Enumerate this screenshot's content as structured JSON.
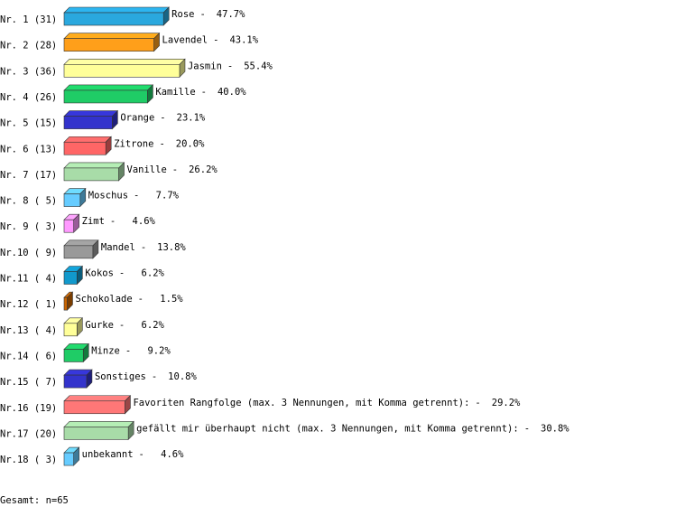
{
  "chart_data": {
    "type": "bar",
    "orientation": "horizontal",
    "row_labels": [
      "Nr. 1 (31)",
      "Nr. 2 (28)",
      "Nr. 3 (36)",
      "Nr. 4 (26)",
      "Nr. 5 (15)",
      "Nr. 6 (13)",
      "Nr. 7 (17)",
      "Nr. 8 ( 5)",
      "Nr. 9 ( 3)",
      "Nr.10 ( 9)",
      "Nr.11 ( 4)",
      "Nr.12 ( 1)",
      "Nr.13 ( 4)",
      "Nr.14 ( 6)",
      "Nr.15 ( 7)",
      "Nr.16 (19)",
      "Nr.17 (20)",
      "Nr.18 ( 3)"
    ],
    "categories": [
      "Rose",
      "Lavendel",
      "Jasmin",
      "Kamille",
      "Orange",
      "Zitrone",
      "Vanille",
      "Moschus",
      "Zimt",
      "Mandel",
      "Kokos",
      "Schokolade",
      "Gurke",
      "Minze",
      "Sonstiges",
      "Favoriten Rangfolge (max. 3 Nennungen, mit Komma getrennt):",
      "gefällt mir überhaupt nicht (max. 3 Nennungen, mit Komma getrennt):",
      "unbekannt"
    ],
    "separator": "-",
    "values": [
      47.7,
      43.1,
      55.4,
      40.0,
      23.1,
      20.0,
      26.2,
      7.7,
      4.6,
      13.8,
      6.2,
      1.5,
      6.2,
      9.2,
      10.8,
      29.2,
      30.8,
      4.6
    ],
    "value_labels": [
      "47.7%",
      "43.1%",
      "55.4%",
      "40.0%",
      "23.1%",
      "20.0%",
      "26.2%",
      "7.7%",
      "4.6%",
      "13.8%",
      "6.2%",
      "1.5%",
      "6.2%",
      "9.2%",
      "10.8%",
      "29.2%",
      "30.8%",
      "4.6%"
    ],
    "colors": [
      "#2aa8de",
      "#ff9f1a",
      "#ffff99",
      "#1fcc66",
      "#3333cc",
      "#ff6666",
      "#a8dca8",
      "#66ccff",
      "#ff99ff",
      "#999999",
      "#1199cc",
      "#cc6600",
      "#ffff99",
      "#1fcc66",
      "#3333cc",
      "#ff7777",
      "#a8dca8",
      "#66ccff"
    ],
    "note": "Gesamt: n=65"
  }
}
